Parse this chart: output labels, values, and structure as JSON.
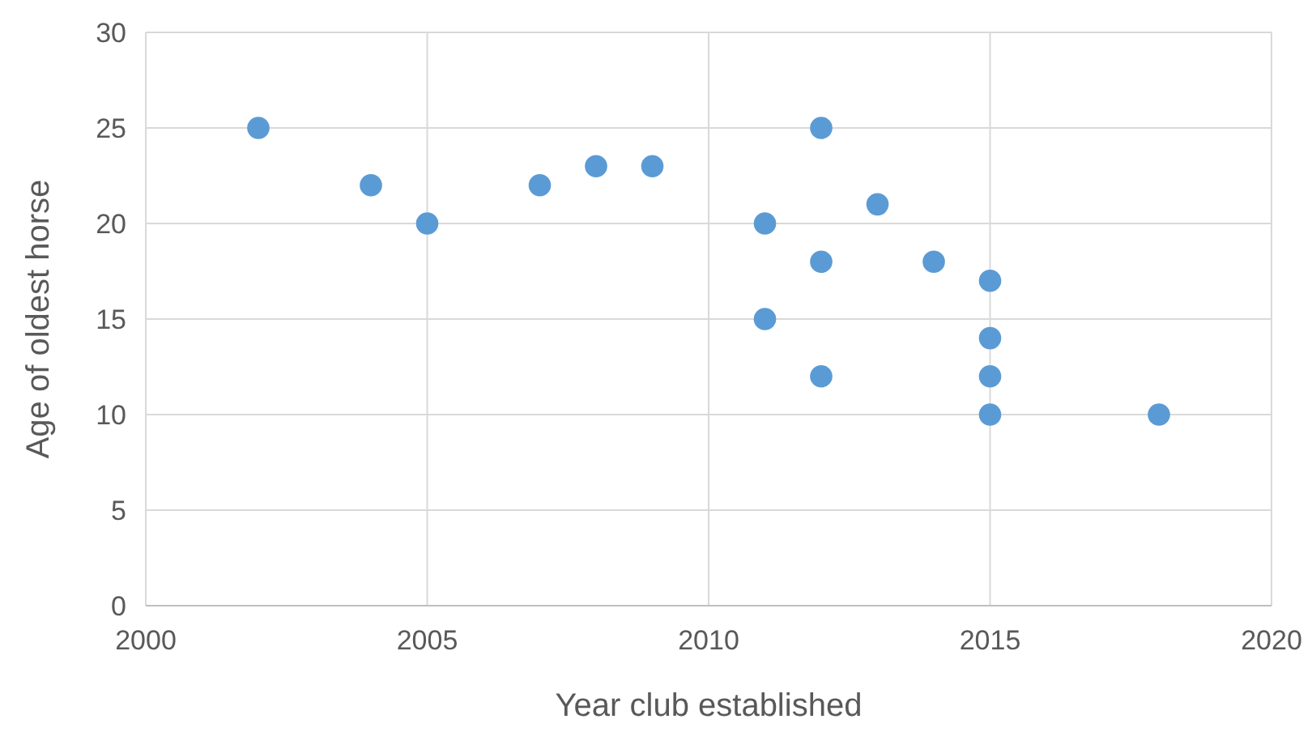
{
  "chart_data": {
    "type": "scatter",
    "xlabel": "Year club established",
    "ylabel": "Age of oldest horse",
    "x": [
      2002,
      2004,
      2005,
      2007,
      2008,
      2009,
      2011,
      2011,
      2012,
      2012,
      2012,
      2013,
      2014,
      2015,
      2015,
      2015,
      2015,
      2018
    ],
    "series": [
      {
        "color": "#5b9bd5",
        "values": [
          25,
          22,
          20,
          22,
          23,
          23,
          20,
          15,
          25,
          18,
          12,
          21,
          18,
          17,
          14,
          12,
          10,
          10
        ]
      }
    ],
    "xlim": [
      2000,
      2020
    ],
    "xticks": [
      2000,
      2005,
      2010,
      2015,
      2020
    ],
    "ylim": [
      0,
      30
    ],
    "yticks": [
      0,
      5,
      10,
      15,
      20,
      25,
      30
    ],
    "grid": true,
    "marker": "circle"
  }
}
